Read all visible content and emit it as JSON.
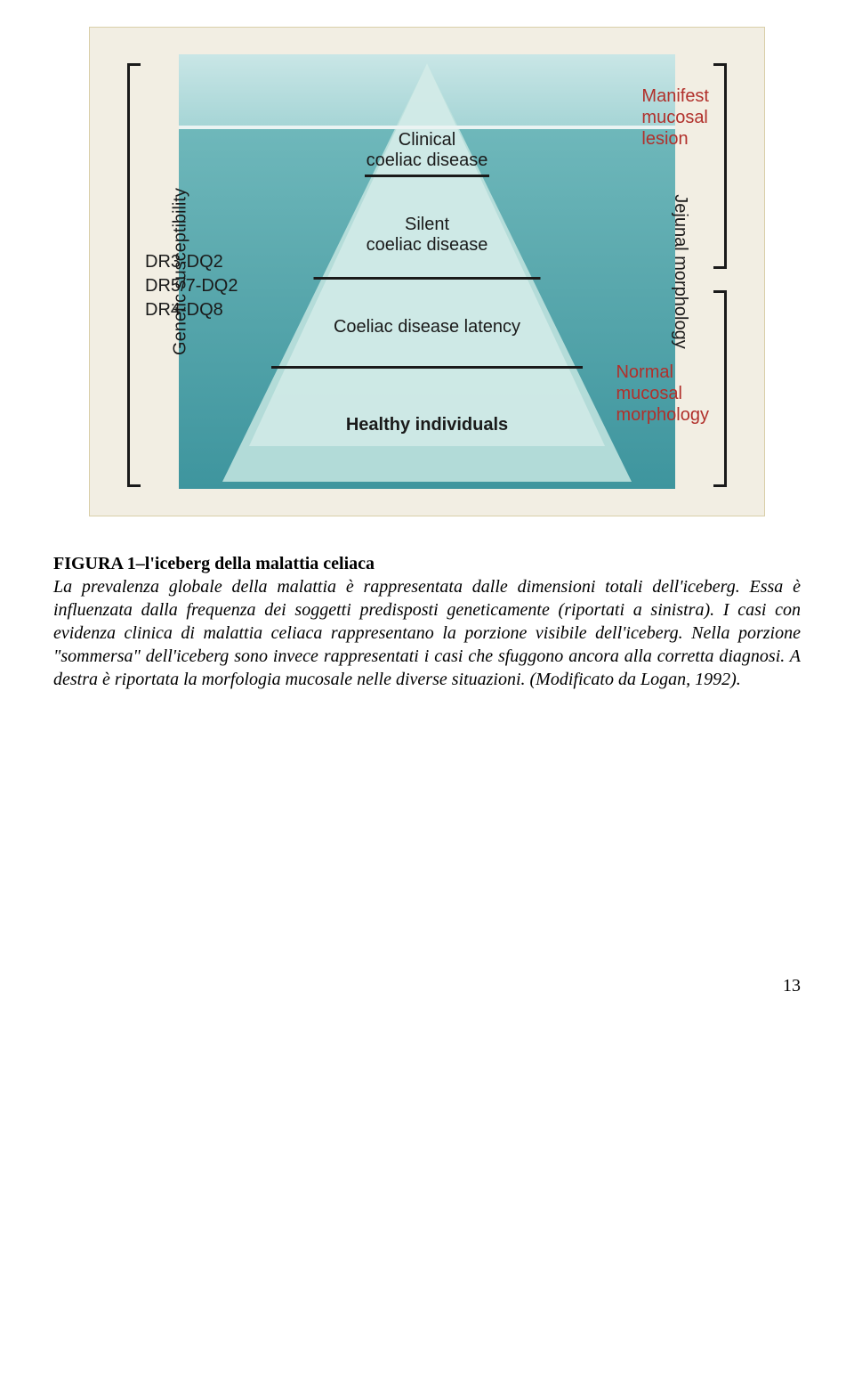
{
  "figure": {
    "leftVerticalLabel": "Genetic susceptibility",
    "rightVerticalLabel": "Jejunal morphology",
    "geneticMarkers": [
      "DR3-DQ2",
      "DR5/7-DQ2",
      "DR4-DQ8"
    ],
    "rightTopLabel": "Manifest\nmucosal\nlesion",
    "rightBottomLabel": "Normal\nmucosal\nmorphology",
    "layers": {
      "clinical": "Clinical\ncoeliac disease",
      "silent": "Silent\ncoeliac disease",
      "latency": "Coeliac disease latency",
      "healthy": "Healthy individuals"
    },
    "dividers": [
      {
        "topPx": 165,
        "widthPx": 140
      },
      {
        "topPx": 280,
        "widthPx": 255
      },
      {
        "topPx": 380,
        "widthPx": 350
      }
    ],
    "layerPositions": {
      "clinical_topPx": 115,
      "silent_topPx": 210,
      "latency_topPx": 325,
      "healthy_topPx": 435
    },
    "colors": {
      "pageBackground": "#ffffff",
      "figureBackground": "#f2eee3",
      "skyTop": "#c9e6e6",
      "skyBottom": "#a6d5d6",
      "waterTop": "#6fb8bb",
      "waterBottom": "#3e959e",
      "icebergOuter": "#bfe2de",
      "icebergInner": "#d9eeeb",
      "textDark": "#1a1a1a",
      "textRed": "#b1302b",
      "dividerColor": "#1a1a1a"
    },
    "typography": {
      "labelFontFamily": "Arial",
      "labelFontSizePt": 15,
      "captionFontFamily": "Times New Roman",
      "captionFontSizePt": 15
    }
  },
  "caption": {
    "title": "FIGURA 1–l'iceberg della malattia celiaca",
    "body": "La prevalenza globale della malattia è rappresentata dalle dimensioni totali dell'iceberg. Essa è influenzata dalla frequenza dei soggetti predisposti geneticamente (riportati a sinistra). I casi con evidenza clinica di malattia celiaca rappresentano la porzione visibile dell'iceberg. Nella porzione \"sommersa\" dell'iceberg sono invece rappresentati i casi che sfuggono ancora alla corretta diagnosi. A destra è riportata la morfologia mucosale nelle diverse situazioni. (Modificato da Logan, 1992)."
  },
  "pageNumber": "13"
}
